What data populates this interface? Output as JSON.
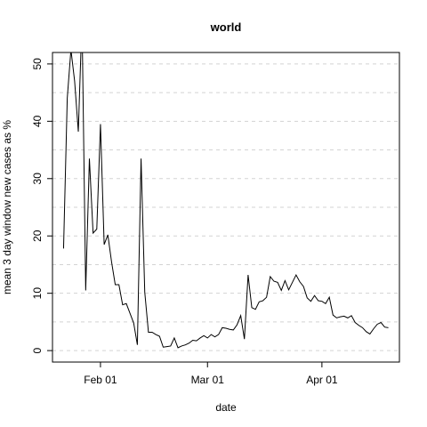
{
  "chart_data": {
    "type": "line",
    "title": "world",
    "xlabel": "date",
    "ylabel": "mean  3  day window new cases as %",
    "x_tick_labels": [
      {
        "label": "Feb 01",
        "date": "2020-02-01"
      },
      {
        "label": "Mar 01",
        "date": "2020-03-01"
      },
      {
        "label": "Apr 01",
        "date": "2020-04-01"
      }
    ],
    "y_ticks": [
      0,
      10,
      20,
      30,
      40,
      50
    ],
    "x_range": [
      "2020-01-19",
      "2020-04-22"
    ],
    "ylim": [
      -2,
      52
    ],
    "grid": {
      "horizontal": true,
      "style": "dashed",
      "color": "#d3d3d3",
      "values": [
        0,
        5,
        10,
        15,
        20,
        25,
        30,
        35,
        40,
        45,
        50
      ]
    },
    "line_color": "#000000",
    "series": [
      {
        "x": [
          "2020-01-22",
          "2020-01-23",
          "2020-01-24",
          "2020-01-25",
          "2020-01-26",
          "2020-01-27",
          "2020-01-28",
          "2020-01-29",
          "2020-01-30",
          "2020-01-31",
          "2020-02-01",
          "2020-02-02",
          "2020-02-03",
          "2020-02-04",
          "2020-02-05",
          "2020-02-06",
          "2020-02-07",
          "2020-02-08",
          "2020-02-09",
          "2020-02-10",
          "2020-02-11",
          "2020-02-12",
          "2020-02-13",
          "2020-02-14",
          "2020-02-15",
          "2020-02-16",
          "2020-02-17",
          "2020-02-18",
          "2020-02-19",
          "2020-02-20",
          "2020-02-21",
          "2020-02-22",
          "2020-02-23",
          "2020-02-24",
          "2020-02-25",
          "2020-02-26",
          "2020-02-27",
          "2020-02-28",
          "2020-02-29",
          "2020-03-01",
          "2020-03-02",
          "2020-03-03",
          "2020-03-04",
          "2020-03-05",
          "2020-03-06",
          "2020-03-07",
          "2020-03-08",
          "2020-03-09",
          "2020-03-10",
          "2020-03-11",
          "2020-03-12",
          "2020-03-13",
          "2020-03-14",
          "2020-03-15",
          "2020-03-16",
          "2020-03-17",
          "2020-03-18",
          "2020-03-19",
          "2020-03-20",
          "2020-03-21",
          "2020-03-22",
          "2020-03-23",
          "2020-03-24",
          "2020-03-25",
          "2020-03-26",
          "2020-03-27",
          "2020-03-28",
          "2020-03-29",
          "2020-03-30",
          "2020-03-31",
          "2020-04-01",
          "2020-04-02",
          "2020-04-03",
          "2020-04-04",
          "2020-04-05",
          "2020-04-06",
          "2020-04-07",
          "2020-04-08",
          "2020-04-09",
          "2020-04-10",
          "2020-04-11",
          "2020-04-12",
          "2020-04-13",
          "2020-04-14",
          "2020-04-15",
          "2020-04-16",
          "2020-04-17",
          "2020-04-18",
          "2020-04-19"
        ],
        "y": [
          17.8,
          44.0,
          52.5,
          47.0,
          38.2,
          58.0,
          10.5,
          33.5,
          20.5,
          21.2,
          39.5,
          18.5,
          20.2,
          15.5,
          11.5,
          11.5,
          8.0,
          8.2,
          6.5,
          4.8,
          1.0,
          33.5,
          10.2,
          3.2,
          3.2,
          2.8,
          2.5,
          0.6,
          0.7,
          0.8,
          2.2,
          0.5,
          0.8,
          1.0,
          1.3,
          1.8,
          1.7,
          2.2,
          2.6,
          2.2,
          2.8,
          2.4,
          2.8,
          4.0,
          3.9,
          3.7,
          3.6,
          4.5,
          6.1,
          2.0,
          13.2,
          7.5,
          7.2,
          8.5,
          8.7,
          9.3,
          12.9,
          12.1,
          11.9,
          10.5,
          12.2,
          10.6,
          11.9,
          13.2,
          12.0,
          11.2,
          9.2,
          8.6,
          9.6,
          8.7,
          8.6,
          8.2,
          9.3,
          6.2,
          5.7,
          5.9,
          6.0,
          5.7,
          6.1,
          4.9,
          4.4,
          4.0,
          3.3,
          2.9,
          3.8,
          4.6,
          4.9,
          4.1,
          4.0
        ]
      }
    ]
  }
}
